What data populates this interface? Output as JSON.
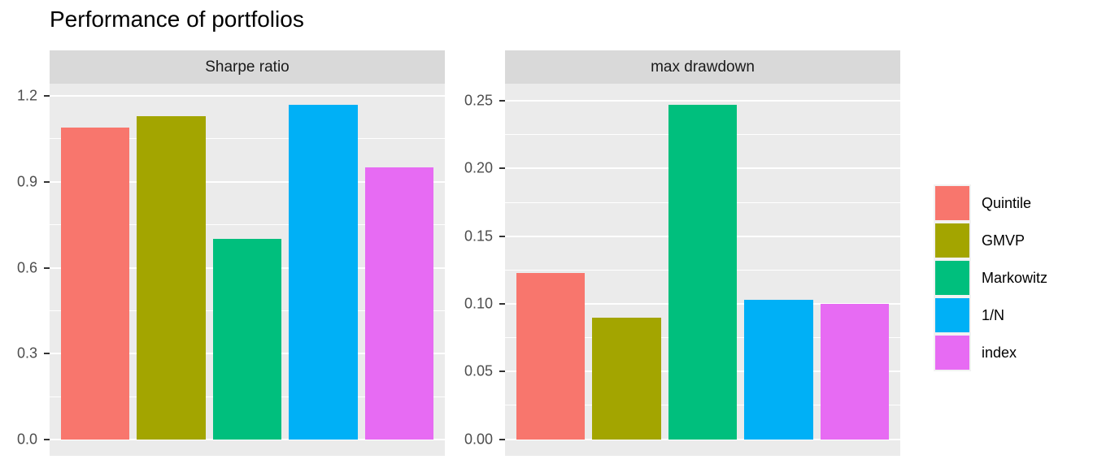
{
  "chart_data": {
    "type": "bar",
    "title": "Performance of portfolios",
    "categories": [
      "Quintile",
      "GMVP",
      "Markowitz",
      "1/N",
      "index"
    ],
    "series_colors": [
      "#F8766D",
      "#A3A500",
      "#00BF7D",
      "#00B0F6",
      "#E76BF3"
    ],
    "grid": true,
    "panel_bg": "#EBEBEB",
    "strip_bg": "#D9D9D9",
    "grid_color": "#FFFFFF",
    "legend_position": "right",
    "facets": [
      {
        "label": "Sharpe ratio",
        "values": [
          1.09,
          1.13,
          0.7,
          1.17,
          0.95
        ],
        "ylim": [
          -0.057,
          1.243
        ],
        "major_ticks": [
          {
            "v": 0.0,
            "label": "0.0"
          },
          {
            "v": 0.3,
            "label": "0.3"
          },
          {
            "v": 0.6,
            "label": "0.6"
          },
          {
            "v": 0.9,
            "label": "0.9"
          },
          {
            "v": 1.2,
            "label": "1.2"
          }
        ],
        "minor_ticks": [
          0.15,
          0.45,
          0.75,
          1.05
        ]
      },
      {
        "label": "max drawdown",
        "values": [
          0.123,
          0.09,
          0.247,
          0.103,
          0.1
        ],
        "ylim": [
          -0.0123,
          0.2627
        ],
        "major_ticks": [
          {
            "v": 0.0,
            "label": "0.00"
          },
          {
            "v": 0.05,
            "label": "0.05"
          },
          {
            "v": 0.1,
            "label": "0.10"
          },
          {
            "v": 0.15,
            "label": "0.15"
          },
          {
            "v": 0.2,
            "label": "0.20"
          },
          {
            "v": 0.25,
            "label": "0.25"
          }
        ],
        "minor_ticks": [
          0.025,
          0.075,
          0.125,
          0.175,
          0.225
        ]
      }
    ],
    "legend": {
      "entries": [
        {
          "label": "Quintile",
          "color": "#F8766D"
        },
        {
          "label": "GMVP",
          "color": "#A3A500"
        },
        {
          "label": "Markowitz",
          "color": "#00BF7D"
        },
        {
          "label": "1/N",
          "color": "#00B0F6"
        },
        {
          "label": "index",
          "color": "#E76BF3"
        }
      ]
    }
  }
}
